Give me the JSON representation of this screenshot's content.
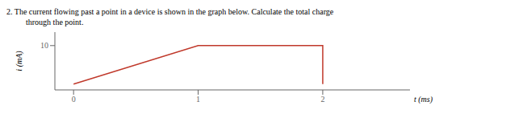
{
  "chart_data": {
    "type": "line",
    "title": "2.   The current flowing past a point in a device is shown in the graph below. Calculate the total charge",
    "subtitle": "through the point.",
    "x_label": "t (ms)",
    "y_label": "i (mA)",
    "x": [
      0,
      1,
      2,
      2
    ],
    "values": [
      0,
      10,
      10,
      0
    ],
    "color": "#c0392b",
    "xlim": [
      -0.15,
      2.7
    ],
    "ylim": [
      -1.5,
      13.5
    ],
    "xticks": [
      0,
      1,
      2
    ],
    "yticks": [
      10
    ],
    "grid": false
  }
}
